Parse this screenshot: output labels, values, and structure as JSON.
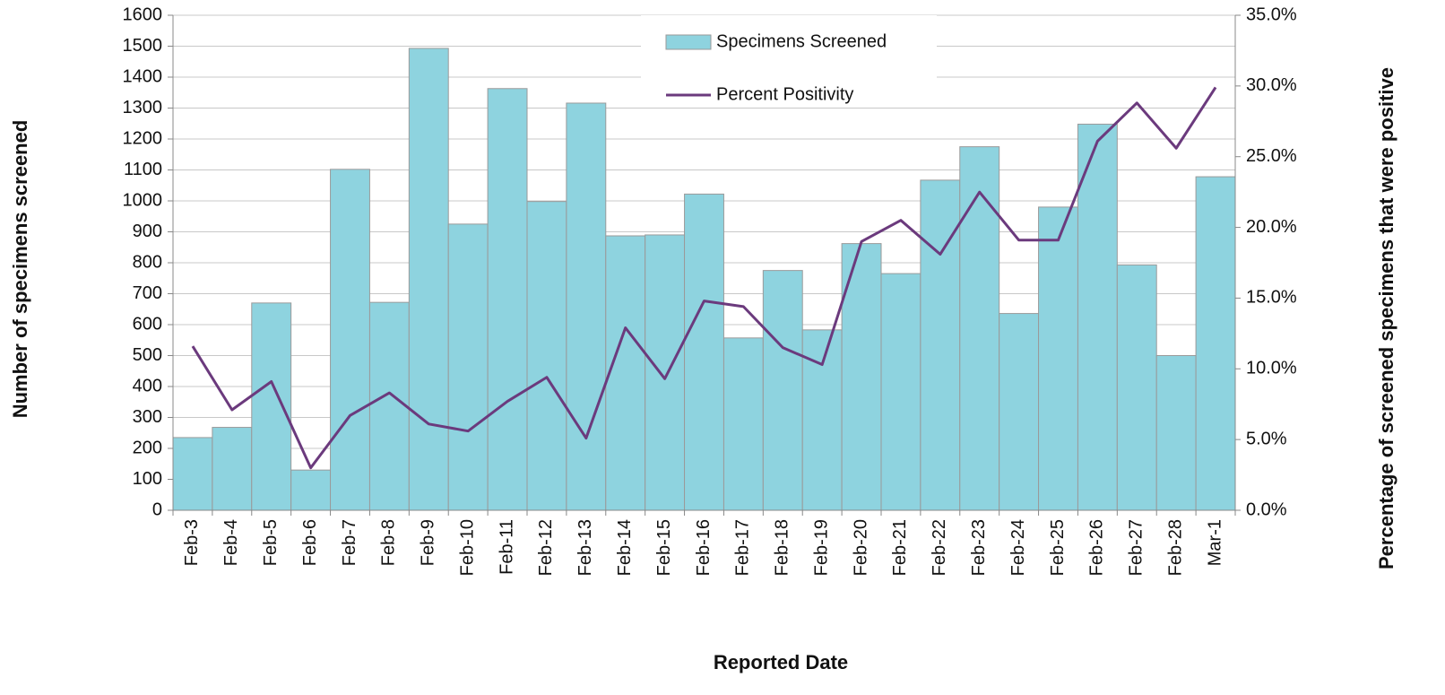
{
  "chart_data": {
    "type": "bar-line",
    "x_label": "Reported Date",
    "y_label": "Number of specimens screened",
    "y2_label": "Percentage of screened specimens that were positive",
    "categories": [
      "Feb-3",
      "Feb-4",
      "Feb-5",
      "Feb-6",
      "Feb-7",
      "Feb-8",
      "Feb-9",
      "Feb-10",
      "Feb-11",
      "Feb-12",
      "Feb-13",
      "Feb-14",
      "Feb-15",
      "Feb-16",
      "Feb-17",
      "Feb-18",
      "Feb-19",
      "Feb-20",
      "Feb-21",
      "Feb-22",
      "Feb-23",
      "Feb-24",
      "Feb-25",
      "Feb-26",
      "Feb-27",
      "Feb-28",
      "Mar-1"
    ],
    "series": [
      {
        "name": "Specimens Screened",
        "type": "bar",
        "color": "#8ed3df",
        "values": [
          235,
          268,
          670,
          130,
          1102,
          672,
          1493,
          925,
          1363,
          998,
          1316,
          887,
          890,
          1022,
          557,
          775,
          583,
          862,
          765,
          1067,
          1175,
          636,
          980,
          1248,
          793,
          500,
          1078
        ]
      },
      {
        "name": "Percent Positivity",
        "type": "line",
        "axis": "y2",
        "color": "#6b3a7d",
        "values": [
          11.6,
          7.1,
          9.1,
          3.0,
          6.7,
          8.3,
          6.1,
          5.6,
          7.7,
          9.4,
          5.1,
          12.9,
          9.3,
          14.8,
          14.4,
          11.5,
          10.3,
          19.0,
          20.5,
          18.1,
          22.5,
          19.1,
          19.1,
          26.1,
          28.8,
          25.6,
          29.9
        ]
      }
    ],
    "ylim": [
      0,
      1600
    ],
    "yticks": [
      0,
      100,
      200,
      300,
      400,
      500,
      600,
      700,
      800,
      900,
      1000,
      1100,
      1200,
      1300,
      1400,
      1500,
      1600
    ],
    "y2lim": [
      0,
      35
    ],
    "y2ticks": [
      {
        "value": 0,
        "label": "0.0%"
      },
      {
        "value": 5,
        "label": "5.0%"
      },
      {
        "value": 10,
        "label": "10.0%"
      },
      {
        "value": 15,
        "label": "15.0%"
      },
      {
        "value": 20,
        "label": "20.0%"
      },
      {
        "value": 25,
        "label": "25.0%"
      },
      {
        "value": 30,
        "label": "30.0%"
      },
      {
        "value": 35,
        "label": "35.0%"
      }
    ],
    "grid": true,
    "legend": "top"
  }
}
